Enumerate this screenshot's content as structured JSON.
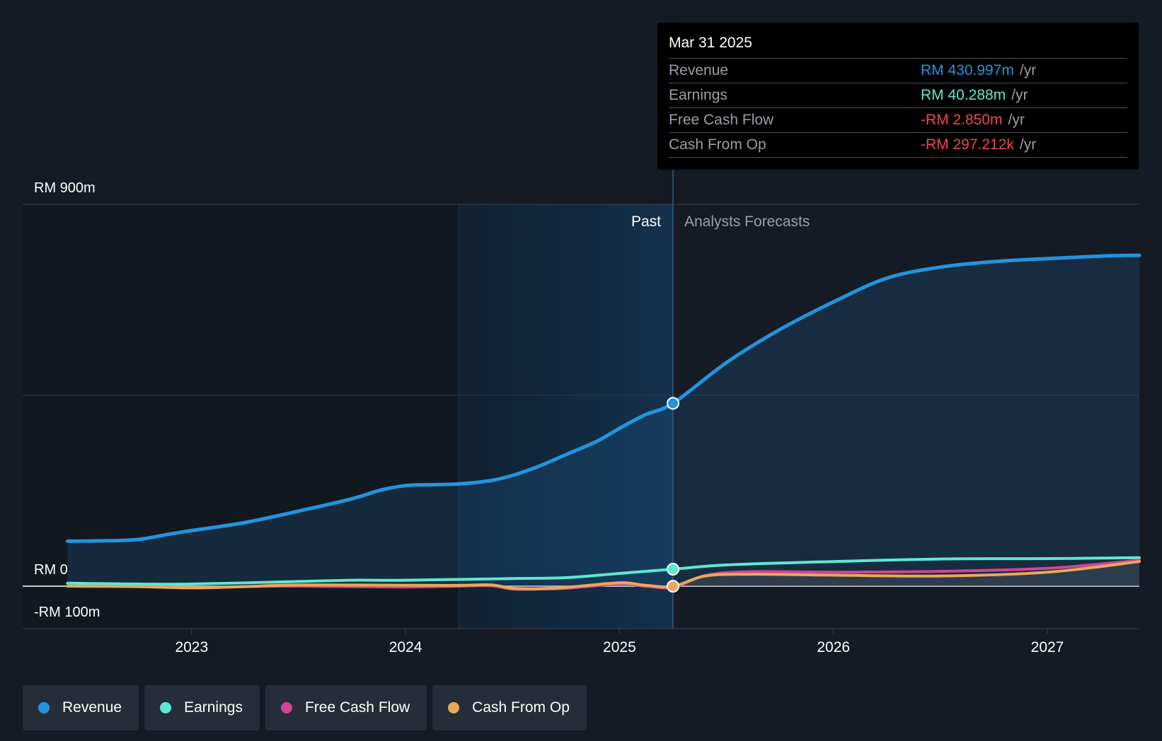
{
  "chart_data": {
    "type": "line",
    "title": "",
    "xlabel": "",
    "ylabel": "",
    "ylim": [
      -100,
      900
    ],
    "y_labels": [
      "RM 900m",
      "RM 0",
      "-RM 100m"
    ],
    "x_ticks": [
      {
        "year": 2023,
        "label": "2023"
      },
      {
        "year": 2024,
        "label": "2024"
      },
      {
        "year": 2025,
        "label": "2025"
      },
      {
        "year": 2026,
        "label": "2026"
      },
      {
        "year": 2027,
        "label": "2027"
      }
    ],
    "x_range": [
      2022.21,
      2027.43
    ],
    "past_label": "Past",
    "forecast_label": "Analysts Forecasts",
    "past_end": 2025.25,
    "highlight_start": 2024.25,
    "series": [
      {
        "name": "Revenue",
        "color": "#2394df",
        "points": [
          [
            2022.42,
            106
          ],
          [
            2022.6,
            107
          ],
          [
            2022.75,
            110
          ],
          [
            2022.9,
            123
          ],
          [
            2023.0,
            131
          ],
          [
            2023.25,
            150
          ],
          [
            2023.5,
            177
          ],
          [
            2023.75,
            206
          ],
          [
            2023.88,
            226
          ],
          [
            2024.0,
            237
          ],
          [
            2024.1,
            239
          ],
          [
            2024.25,
            241
          ],
          [
            2024.4,
            249
          ],
          [
            2024.5,
            261
          ],
          [
            2024.62,
            282
          ],
          [
            2024.75,
            310
          ],
          [
            2024.9,
            343
          ],
          [
            2025.0,
            372
          ],
          [
            2025.12,
            404
          ],
          [
            2025.25,
            431
          ],
          [
            2025.5,
            527
          ],
          [
            2025.75,
            605
          ],
          [
            2026.0,
            670
          ],
          [
            2026.25,
            726
          ],
          [
            2026.5,
            752
          ],
          [
            2026.75,
            765
          ],
          [
            2027.0,
            772
          ],
          [
            2027.25,
            778
          ],
          [
            2027.43,
            780
          ]
        ]
      },
      {
        "name": "Earnings",
        "color": "#5ee8d2",
        "points": [
          [
            2022.42,
            7
          ],
          [
            2022.75,
            5
          ],
          [
            2023.0,
            5
          ],
          [
            2023.5,
            11
          ],
          [
            2023.75,
            14
          ],
          [
            2024.0,
            14
          ],
          [
            2024.5,
            18
          ],
          [
            2024.75,
            20
          ],
          [
            2025.0,
            30
          ],
          [
            2025.25,
            40
          ],
          [
            2025.5,
            50
          ],
          [
            2026.0,
            58
          ],
          [
            2026.5,
            64
          ],
          [
            2027.0,
            65
          ],
          [
            2027.43,
            67
          ]
        ]
      },
      {
        "name": "Free Cash Flow",
        "color": "#cf4690",
        "points": [
          [
            2022.42,
            0
          ],
          [
            2022.75,
            -1
          ],
          [
            2023.0,
            -4
          ],
          [
            2023.25,
            -1
          ],
          [
            2023.5,
            0
          ],
          [
            2024.0,
            -2
          ],
          [
            2024.25,
            0
          ],
          [
            2024.4,
            1
          ],
          [
            2024.5,
            -7
          ],
          [
            2024.62,
            -7
          ],
          [
            2024.75,
            -5
          ],
          [
            2025.0,
            5
          ],
          [
            2025.12,
            0
          ],
          [
            2025.25,
            -2.9
          ],
          [
            2025.4,
            25
          ],
          [
            2025.6,
            34
          ],
          [
            2026.0,
            33
          ],
          [
            2026.5,
            35
          ],
          [
            2027.0,
            42
          ],
          [
            2027.43,
            61
          ]
        ]
      },
      {
        "name": "Cash From Op",
        "color": "#e8a85a",
        "points": [
          [
            2022.42,
            0
          ],
          [
            2022.75,
            -1
          ],
          [
            2023.0,
            -4
          ],
          [
            2023.25,
            -1
          ],
          [
            2023.5,
            3
          ],
          [
            2024.0,
            2
          ],
          [
            2024.25,
            2
          ],
          [
            2024.4,
            3
          ],
          [
            2024.5,
            -5
          ],
          [
            2024.62,
            -6
          ],
          [
            2024.75,
            -3
          ],
          [
            2025.0,
            8
          ],
          [
            2025.12,
            2
          ],
          [
            2025.25,
            -0.3
          ],
          [
            2025.4,
            24
          ],
          [
            2025.6,
            28
          ],
          [
            2026.0,
            26
          ],
          [
            2026.5,
            24
          ],
          [
            2027.0,
            33
          ],
          [
            2027.43,
            58
          ]
        ]
      }
    ]
  },
  "tooltip": {
    "date": "Mar 31 2025",
    "rows": [
      {
        "label": "Revenue",
        "value": "RM 430.997m",
        "unit": "/yr",
        "color": "#2394df"
      },
      {
        "label": "Earnings",
        "value": "RM 40.288m",
        "unit": "/yr",
        "color": "#5ee8d2"
      },
      {
        "label": "Free Cash Flow",
        "value": "-RM 2.850m",
        "unit": "/yr",
        "color": "#e84855"
      },
      {
        "label": "Cash From Op",
        "value": "-RM 297.212k",
        "unit": "/yr",
        "color": "#e84855"
      }
    ]
  },
  "legend": [
    {
      "label": "Revenue",
      "color": "#2394df"
    },
    {
      "label": "Earnings",
      "color": "#5ee8d2"
    },
    {
      "label": "Free Cash Flow",
      "color": "#cf4690"
    },
    {
      "label": "Cash From Op",
      "color": "#e8a85a"
    }
  ]
}
